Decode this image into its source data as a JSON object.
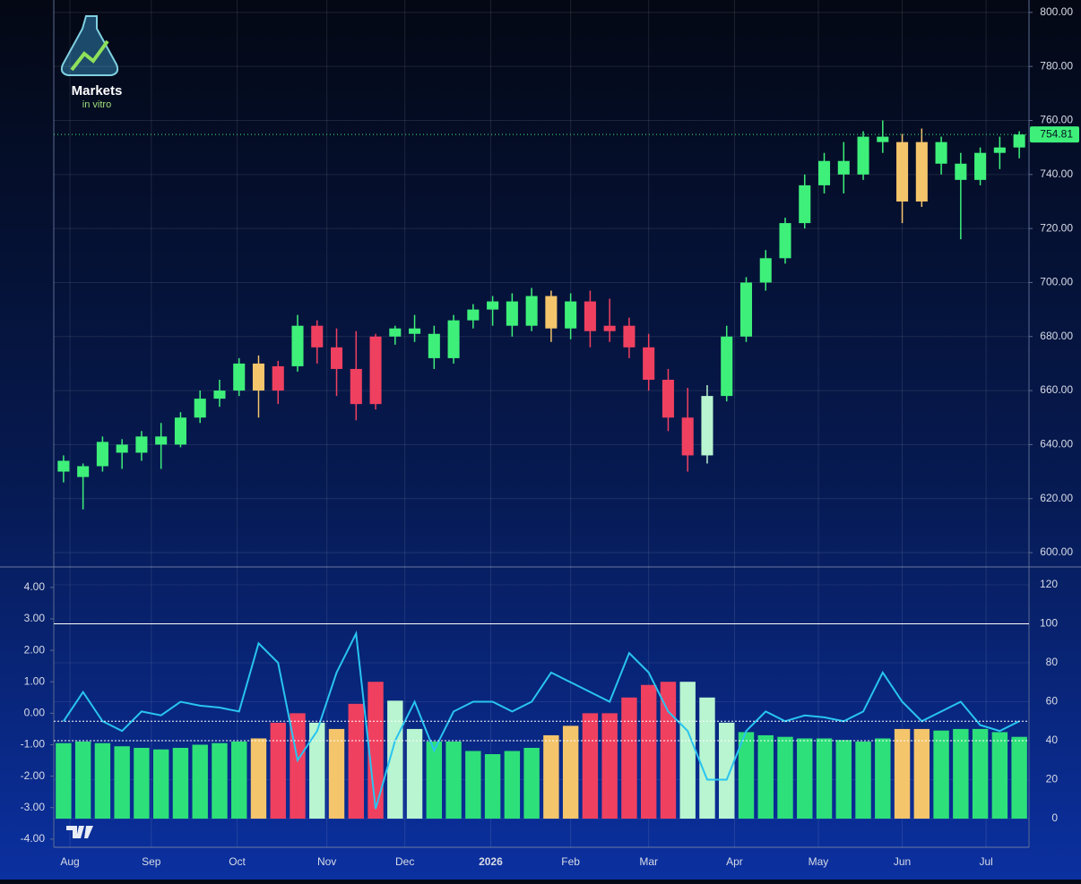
{
  "logo": {
    "title": "Markets",
    "subtitle": "in vitro"
  },
  "chart_data": [
    {
      "type": "candlestick",
      "x": [
        0.5,
        1.5,
        2.5,
        3.5,
        4.5,
        5.5,
        6.5,
        7.5,
        8.5,
        9.5,
        10.5,
        11.5,
        12.5,
        13.5,
        14.5,
        15.5,
        16.5,
        17.5,
        18.5,
        19.5,
        20.5,
        21.5,
        22.5,
        23.5,
        24.5,
        25.5,
        26.5,
        27.5,
        28.5,
        29.5,
        30.5,
        31.5,
        32.5,
        33.5,
        34.5,
        35.5,
        36.5,
        37.5,
        38.5,
        39.5,
        40.5,
        41.5,
        42.5,
        43.5,
        44.5,
        45.5,
        46.5,
        47.5,
        48.5,
        49.5
      ],
      "open": [
        634,
        628,
        632,
        640,
        637,
        643,
        640,
        650,
        657,
        660,
        670,
        660,
        669,
        684,
        676,
        668,
        655,
        680,
        683,
        681,
        672,
        686,
        690,
        693,
        684,
        695,
        683,
        693,
        682,
        684,
        676,
        664,
        650,
        636,
        658,
        680,
        700,
        709,
        722,
        736,
        745,
        740,
        754,
        752,
        730,
        752,
        744,
        738,
        748,
        750
      ],
      "high": [
        636,
        633,
        643,
        642,
        645,
        648,
        652,
        660,
        664,
        672,
        673,
        671,
        688,
        686,
        683,
        682,
        681,
        684,
        688,
        684,
        688,
        692,
        695,
        696,
        698,
        697,
        696,
        697,
        694,
        687,
        681,
        668,
        661,
        662,
        684,
        702,
        712,
        724,
        740,
        748,
        752,
        756,
        760,
        755,
        757,
        754,
        748,
        750,
        754,
        756
      ],
      "low": [
        626,
        616,
        630,
        631,
        634,
        631,
        639,
        648,
        654,
        658,
        650,
        655,
        667,
        670,
        658,
        649,
        653,
        677,
        678,
        668,
        670,
        683,
        684,
        680,
        682,
        678,
        679,
        676,
        678,
        672,
        660,
        645,
        630,
        633,
        656,
        678,
        697,
        707,
        720,
        733,
        733,
        738,
        748,
        722,
        728,
        740,
        716,
        736,
        742,
        746
      ],
      "close": [
        630,
        632,
        641,
        637,
        643,
        640,
        650,
        657,
        660,
        670,
        660,
        669,
        684,
        676,
        668,
        655,
        680,
        683,
        681,
        672,
        686,
        690,
        693,
        684,
        695,
        683,
        693,
        682,
        684,
        676,
        664,
        650,
        636,
        658,
        680,
        700,
        709,
        722,
        736,
        745,
        740,
        754,
        752,
        730,
        752,
        744,
        738,
        748,
        750,
        754.81
      ],
      "colors": [
        "#3ef07a",
        "#3ef07a",
        "#3ef07a",
        "#3ef07a",
        "#3ef07a",
        "#3ef07a",
        "#3ef07a",
        "#3ef07a",
        "#3ef07a",
        "#3ef07a",
        "#f5c56b",
        "#f04060",
        "#3ef07a",
        "#f04060",
        "#f04060",
        "#f04060",
        "#f04060",
        "#3ef07a",
        "#3ef07a",
        "#3ef07a",
        "#3ef07a",
        "#3ef07a",
        "#3ef07a",
        "#3ef07a",
        "#3ef07a",
        "#f5c56b",
        "#3ef07a",
        "#f04060",
        "#f04060",
        "#f04060",
        "#f04060",
        "#f04060",
        "#f04060",
        "#b8f5d0",
        "#3ef07a",
        "#3ef07a",
        "#3ef07a",
        "#3ef07a",
        "#3ef07a",
        "#3ef07a",
        "#3ef07a",
        "#3ef07a",
        "#3ef07a",
        "#f5c56b",
        "#f5c56b",
        "#3ef07a",
        "#3ef07a",
        "#3ef07a",
        "#3ef07a",
        "#3ef07a"
      ],
      "xlim": [
        0,
        50
      ],
      "xticks": [
        {
          "value": 0.83,
          "label": "Aug"
        },
        {
          "value": 5.0,
          "label": "Sep"
        },
        {
          "value": 9.4,
          "label": "Oct"
        },
        {
          "value": 14.0,
          "label": "Nov"
        },
        {
          "value": 18.0,
          "label": "Dec"
        },
        {
          "value": 22.4,
          "label": "2026"
        },
        {
          "value": 26.5,
          "label": "Feb"
        },
        {
          "value": 30.5,
          "label": "Mar"
        },
        {
          "value": 34.9,
          "label": "Apr"
        },
        {
          "value": 39.2,
          "label": "May"
        },
        {
          "value": 43.5,
          "label": "Jun"
        },
        {
          "value": 47.8,
          "label": "Jul"
        }
      ],
      "ylim": [
        594.7,
        804.6
      ],
      "yticks": [
        {
          "value": 600,
          "label": "600.00"
        },
        {
          "value": 620,
          "label": "620.00"
        },
        {
          "value": 640,
          "label": "640.00"
        },
        {
          "value": 660,
          "label": "660.00"
        },
        {
          "value": 680,
          "label": "680.00"
        },
        {
          "value": 700,
          "label": "700.00"
        },
        {
          "value": 720,
          "label": "720.00"
        },
        {
          "value": 740,
          "label": "740.00"
        },
        {
          "value": 760,
          "label": "760.00"
        },
        {
          "value": 780,
          "label": "780.00"
        },
        {
          "value": 800,
          "label": "800.00"
        }
      ],
      "grid": true,
      "price_line_color": "#3ef07a"
    },
    {
      "type": "combo",
      "x": [
        0.5,
        1.5,
        2.5,
        3.5,
        4.5,
        5.5,
        6.5,
        7.5,
        8.5,
        9.5,
        10.5,
        11.5,
        12.5,
        13.5,
        14.5,
        15.5,
        16.5,
        17.5,
        18.5,
        19.5,
        20.5,
        21.5,
        22.5,
        23.5,
        24.5,
        25.5,
        26.5,
        27.5,
        28.5,
        29.5,
        30.5,
        31.5,
        32.5,
        33.5,
        34.5,
        35.5,
        36.5,
        37.5,
        38.5,
        39.5,
        40.5,
        41.5,
        42.5,
        43.5,
        44.5,
        45.5,
        46.5,
        47.5,
        48.5,
        49.5
      ],
      "xlim": [
        0,
        50
      ],
      "ylim": [
        -4.26,
        4.65
      ],
      "yticks": [
        {
          "value": -4,
          "label": "-4.00"
        },
        {
          "value": -3,
          "label": "-3.00"
        },
        {
          "value": -2,
          "label": "-2.00"
        },
        {
          "value": -1,
          "label": "-1.00"
        },
        {
          "value": 0,
          "label": "0.00"
        },
        {
          "value": 1,
          "label": "1.00"
        },
        {
          "value": 2,
          "label": "2.00"
        },
        {
          "value": 3,
          "label": "3.00"
        },
        {
          "value": 4,
          "label": "4.00"
        }
      ],
      "y2lim": [
        -14.7,
        129.2
      ],
      "y2ticks": [
        0,
        20,
        40,
        60,
        80,
        100,
        120
      ],
      "y2_lines": [
        100,
        50,
        40
      ],
      "series": [
        {
          "type": "bar",
          "values": [
            -0.95,
            -0.9,
            -0.95,
            -1.05,
            -1.1,
            -1.15,
            -1.1,
            -1.0,
            -0.95,
            -0.9,
            -0.8,
            -0.3,
            0.0,
            -0.3,
            -0.5,
            0.3,
            1.0,
            0.4,
            -0.5,
            -0.9,
            -0.9,
            -1.2,
            -1.3,
            -1.2,
            -1.1,
            -0.7,
            -0.4,
            0.0,
            0.0,
            0.5,
            0.9,
            1.0,
            1.0,
            0.5,
            -0.3,
            -0.6,
            -0.7,
            -0.75,
            -0.8,
            -0.8,
            -0.85,
            -0.9,
            -0.8,
            -0.5,
            -0.5,
            -0.55,
            -0.5,
            -0.5,
            -0.6,
            -0.75
          ],
          "colors": [
            "#2ee07a",
            "#2ee07a",
            "#2ee07a",
            "#2ee07a",
            "#2ee07a",
            "#2ee07a",
            "#2ee07a",
            "#2ee07a",
            "#2ee07a",
            "#2ee07a",
            "#f5c56b",
            "#f04060",
            "#f04060",
            "#b8f5d0",
            "#f5c56b",
            "#f04060",
            "#f04060",
            "#b8f5d0",
            "#b8f5d0",
            "#2ee07a",
            "#2ee07a",
            "#2ee07a",
            "#2ee07a",
            "#2ee07a",
            "#2ee07a",
            "#f5c56b",
            "#f5c56b",
            "#f04060",
            "#f04060",
            "#f04060",
            "#f04060",
            "#f04060",
            "#b8f5d0",
            "#b8f5d0",
            "#b8f5d0",
            "#2ee07a",
            "#2ee07a",
            "#2ee07a",
            "#2ee07a",
            "#2ee07a",
            "#2ee07a",
            "#2ee07a",
            "#2ee07a",
            "#f5c56b",
            "#f5c56b",
            "#2ee07a",
            "#2ee07a",
            "#2ee07a",
            "#2ee07a",
            "#2ee07a"
          ]
        },
        {
          "type": "line",
          "axis": "y2",
          "color": "#29c4f0",
          "values": [
            50,
            65,
            50,
            45,
            55,
            53,
            60,
            58,
            57,
            55,
            90,
            80,
            30,
            45,
            75,
            95,
            5,
            40,
            60,
            35,
            55,
            60,
            60,
            55,
            60,
            75,
            70,
            65,
            60,
            85,
            75,
            55,
            45,
            20,
            20,
            45,
            55,
            50,
            53,
            52,
            50,
            55,
            75,
            60,
            50,
            55,
            60,
            48,
            45,
            50
          ]
        }
      ]
    }
  ]
}
